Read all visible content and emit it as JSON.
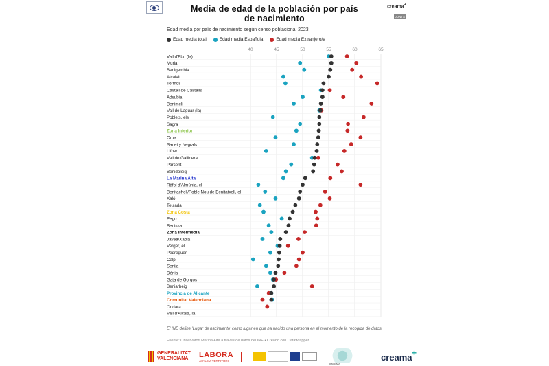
{
  "header": {
    "title_line1": "Media de edad de la población por país",
    "title_line2": "de nacimiento",
    "brand_top": "creama",
    "brand_top_plus": "+",
    "brand_badge": "JUNTS"
  },
  "subtitle": "Edad media por país de nacimiento según censo poblacional 2023",
  "legend": [
    {
      "label": "Edad media total",
      "color": "#333333"
    },
    {
      "label": "Edad media Española",
      "color": "#1aa3c0"
    },
    {
      "label": "Edad media Extranjero/a",
      "color": "#c62828"
    }
  ],
  "chart_data": {
    "type": "scatter",
    "orientation": "horizontal-dot-plot",
    "title": "Media de edad de la población por país de nacimiento",
    "subtitle": "Edad media por país de nacimiento según censo poblacional 2023",
    "xlim": [
      40,
      65
    ],
    "x_ticks": [
      "40",
      "45",
      "50",
      "55",
      "60",
      "65"
    ],
    "grid": true,
    "legend_position": "top",
    "categories": [
      "Vall d'Ebo (la)",
      "Murla",
      "Benigembla",
      "Alcalalí",
      "Tormos",
      "Castell de Castells",
      "Adsubia",
      "Benimeli",
      "Vall de Laguar (la)",
      "Poblets, els",
      "Sagra",
      "Zona Interior",
      "Orba",
      "Sanet y Negrals",
      "Llíber",
      "Vall de Gallinera",
      "Parcent",
      "Benidoleig",
      "La Marina Alta",
      "Ràfol d'Almúnia, el",
      "Benitachell/Poble Nou de Benitatxell, el",
      "Xaló",
      "Teulada",
      "Zona Costa",
      "Pego",
      "Benissa",
      "Zona Intermedia",
      "Jávea/Xàbia",
      "Verger, el",
      "Pedreguer",
      "Calp",
      "Senija",
      "Dénia",
      "Gata de Gorgos",
      "Beniarbeig",
      "Provincia de Alicante",
      "Comunitat Valenciana",
      "Ondara",
      "Vall d'Alcalà, la"
    ],
    "highlight_labels": [
      {
        "label": "Zona Interior",
        "color": "#8bc34a"
      },
      {
        "label": "La Marina Alta",
        "color": "#2233cc"
      },
      {
        "label": "Zona Costa",
        "color": "#f2c200"
      },
      {
        "label": "Zona Intermedia",
        "color": "#111111"
      },
      {
        "label": "Provincia de Alicante",
        "color": "#1aa3c0"
      },
      {
        "label": "Comunitat Valenciana",
        "color": "#e65100"
      }
    ],
    "series": [
      {
        "name": "Edad media total",
        "color": "#333333",
        "values": [
          55.5,
          55.5,
          55.3,
          55.0,
          54.0,
          53.8,
          53.8,
          53.5,
          53.4,
          53.2,
          53.2,
          53.1,
          53.0,
          52.8,
          52.7,
          52.3,
          52.2,
          52.0,
          50.5,
          50.0,
          49.5,
          49.3,
          48.6,
          48.1,
          47.5,
          47.3,
          46.8,
          45.7,
          45.6,
          45.5,
          45.4,
          45.3,
          44.8,
          44.5,
          44.5,
          44.0,
          44.0,
          null,
          null
        ]
      },
      {
        "name": "Edad media Española",
        "color": "#1aa3c0",
        "values": [
          55.0,
          49.5,
          50.3,
          46.3,
          46.7,
          53.5,
          50.0,
          48.3,
          53.2,
          44.3,
          49.5,
          48.8,
          44.8,
          48.3,
          43.0,
          51.8,
          47.8,
          46.8,
          46.3,
          41.5,
          42.8,
          44.8,
          41.8,
          42.5,
          46.0,
          43.5,
          44.0,
          42.3,
          45.2,
          43.8,
          40.5,
          43.0,
          43.8,
          44.3,
          41.3,
          44.0,
          44.2,
          null,
          null
        ]
      },
      {
        "name": "Edad media Extranjero/a",
        "color": "#c62828",
        "values": [
          58.5,
          60.3,
          59.5,
          61.2,
          64.3,
          55.2,
          57.8,
          63.2,
          53.6,
          61.7,
          58.7,
          58.6,
          61.1,
          59.3,
          58.0,
          53.0,
          56.7,
          57.5,
          55.3,
          61.1,
          54.3,
          55.2,
          53.4,
          52.5,
          52.8,
          52.6,
          50.4,
          49.2,
          47.2,
          50.0,
          49.3,
          48.8,
          46.5,
          44.9,
          51.8,
          43.5,
          42.3,
          43.2,
          null
        ]
      }
    ]
  },
  "footnote": "El INE define 'Lugar de nacimiento' como lugar en que ha nacido una persona en el momento de la recogida de datos",
  "source": "Fuente: Observatori Marina Alta a través de datos del INE • Creado con Datawrapper",
  "footer": {
    "gv_line1": "GENERALITAT",
    "gv_line2": "VALENCIANA",
    "labora_main": "LABORA",
    "labora_sub": "AVALEM TERRITORI",
    "pmp_label": "pactoMA",
    "creama": "creama",
    "creama_plus": "+"
  }
}
